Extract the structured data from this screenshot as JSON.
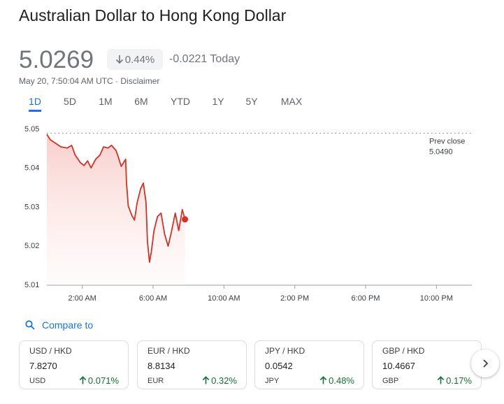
{
  "header": {
    "title": "Australian Dollar to Hong Kong Dollar",
    "price": "5.0269",
    "change_percent": "0.44%",
    "change_today": "-0.0221 Today",
    "timestamp": "May 20, 7:50:04 AM UTC · Disclaimer"
  },
  "tabs": [
    "1D",
    "5D",
    "1M",
    "6M",
    "YTD",
    "1Y",
    "5Y",
    "MAX"
  ],
  "chart_data": {
    "type": "line",
    "x": [
      0,
      0.2,
      0.5,
      0.8,
      1.15,
      1.4,
      1.6,
      1.9,
      2.1,
      2.3,
      2.5,
      2.75,
      3.0,
      3.2,
      3.45,
      3.65,
      3.9,
      4.0,
      4.2,
      4.45,
      4.5,
      4.6,
      4.8,
      4.95,
      5.1,
      5.3,
      5.45,
      5.6,
      5.68,
      5.8,
      5.9,
      6.05,
      6.25,
      6.45,
      6.65,
      6.85,
      7.05,
      7.25,
      7.45,
      7.65,
      7.8
    ],
    "series": [
      {
        "color": "#d93025",
        "values": [
          5.0487,
          5.0473,
          5.0464,
          5.0455,
          5.0452,
          5.0459,
          5.0434,
          5.0414,
          5.0407,
          5.0419,
          5.0401,
          5.0423,
          5.0434,
          5.0455,
          5.0452,
          5.0459,
          5.0446,
          5.0434,
          5.0405,
          5.0423,
          5.0362,
          5.0303,
          5.0279,
          5.0267,
          5.0312,
          5.0348,
          5.0362,
          5.0312,
          5.0213,
          5.0159,
          5.0186,
          5.024,
          5.0276,
          5.0285,
          5.0231,
          5.02,
          5.024,
          5.0285,
          5.024,
          5.0294,
          5.0269
        ]
      }
    ],
    "xlim": [
      0,
      24
    ],
    "xticks": [
      {
        "value": 2,
        "label": "2:00 AM"
      },
      {
        "value": 6,
        "label": "6:00 AM"
      },
      {
        "value": 10,
        "label": "10:00 AM"
      },
      {
        "value": 14,
        "label": "2:00 PM"
      },
      {
        "value": 18,
        "label": "6:00 PM"
      },
      {
        "value": 22,
        "label": "10:00 PM"
      }
    ],
    "ylim": [
      5.01,
      5.05
    ],
    "yticks": [
      5.01,
      5.02,
      5.03,
      5.04,
      5.05
    ],
    "grid": false,
    "prev_close": {
      "label": "Prev close",
      "value": 5.049,
      "value_label": "5.0490"
    }
  },
  "compare": {
    "label": "Compare to",
    "cards": [
      {
        "pair": "USD / HKD",
        "price": "7.8270",
        "currency": "USD",
        "change": "0.071%"
      },
      {
        "pair": "EUR / HKD",
        "price": "8.8134",
        "currency": "EUR",
        "change": "0.32%"
      },
      {
        "pair": "JPY / HKD",
        "price": "0.0542",
        "currency": "JPY",
        "change": "0.48%"
      },
      {
        "pair": "GBP / HKD",
        "price": "10.4667",
        "currency": "GBP",
        "change": "0.17%"
      }
    ]
  }
}
